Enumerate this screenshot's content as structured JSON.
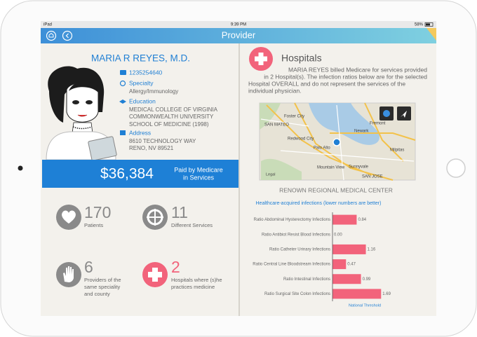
{
  "status_bar": {
    "device": "iPad",
    "time": "9:39 PM",
    "battery": "58%"
  },
  "nav": {
    "title": "Provider"
  },
  "provider": {
    "name": "MARIA R REYES, M.D.",
    "npi": "1235254640",
    "specialty_label": "Specialty",
    "specialty": "Allergy/Immunology",
    "education_label": "Education",
    "education": [
      "MEDICAL COLLEGE OF VIRGINIA",
      "COMMONWEALTH UNIVERSITY",
      "SCHOOL OF MEDICINE (1998)"
    ],
    "address_label": "Address",
    "address": [
      "8610 TECHNOLOGY WAY",
      "RENO, NV 89521"
    ]
  },
  "payment": {
    "amount": "$36,384",
    "label": [
      "Paid by Medicare",
      "in Services"
    ]
  },
  "stats": [
    {
      "value": 170,
      "label": [
        "Patients"
      ]
    },
    {
      "value": 11,
      "label": [
        "Different Services"
      ]
    },
    {
      "value": 6,
      "label": [
        "Providers of the",
        "same speciality",
        "and county"
      ]
    },
    {
      "value": 2,
      "label": [
        "Hospitals where (s)he",
        "practices medicine"
      ]
    }
  ],
  "hospitals": {
    "title": "Hospitals",
    "description": [
      "MARIA REYES billed Medicare for services provided",
      "in 2 Hospital(s). The infection ratios below are for the selected",
      "Hospital OVERALL and do not represent the services of the",
      "individual physician."
    ],
    "map_labels": [
      "SAN MATEO",
      "Foster City",
      "Redwood City",
      "Palo Alto",
      "Newark",
      "Fremont",
      "Milpitas",
      "Mountain View",
      "Sunnyvale",
      "SAN JOSE"
    ],
    "map_legal": "Legal",
    "hospital_name": "RENOWN REGIONAL MEDICAL CENTER"
  },
  "chart_data": {
    "type": "bar",
    "orientation": "horizontal",
    "title": "Healthcare-acquired infections (lower numbers are better)",
    "categories": [
      "Ratio Abdominal Hysterectomy Infections",
      "Ratio Antibiot Resist Blood Infections",
      "Ratio Catheter Urinary Infections",
      "Ratio Central Line Bloodstream Infections",
      "Ratio Intestinal Infections",
      "Ratio Surgical Site Colon Infections"
    ],
    "values": [
      0.84,
      0,
      1.16,
      0.47,
      0.99,
      1.69
    ],
    "value_labels": [
      "0.84",
      "0.00",
      "1.16",
      "0.47",
      "0.99",
      "1.69"
    ],
    "color": "#f2637b",
    "xlim": [
      0,
      2
    ],
    "annotation": "National Threshold"
  }
}
